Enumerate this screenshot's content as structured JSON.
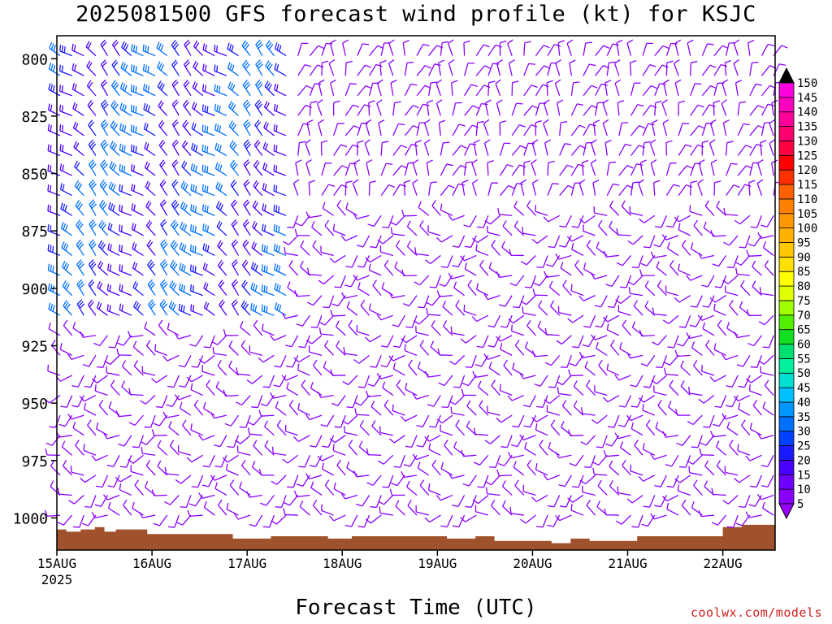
{
  "header": {
    "title": "2025081500 GFS forecast wind profile (kt) for KSJC"
  },
  "footer": {
    "credit": "coolwx.com/models"
  },
  "chart_data": {
    "type": "wind_barb_profile",
    "title": "2025081500 GFS forecast wind profile (kt) for KSJC",
    "xlabel": "Forecast Time (UTC)",
    "ylabel": "",
    "y_axis": {
      "ticks": [
        800,
        825,
        850,
        875,
        900,
        925,
        950,
        975,
        1000
      ],
      "range": [
        790,
        1014
      ],
      "inverted": true
    },
    "x_axis": {
      "ticks": [
        "15AUG",
        "16AUG",
        "17AUG",
        "18AUG",
        "19AUG",
        "20AUG",
        "21AUG",
        "22AUG"
      ],
      "start_sublabel": "2025",
      "range_days": [
        0,
        7.55
      ]
    },
    "surface_pressure": [
      {
        "d": 0.0,
        "p": 1005
      },
      {
        "d": 0.1,
        "p": 1006
      },
      {
        "d": 0.25,
        "p": 1005
      },
      {
        "d": 0.4,
        "p": 1004
      },
      {
        "d": 0.5,
        "p": 1006
      },
      {
        "d": 0.62,
        "p": 1005
      },
      {
        "d": 0.8,
        "p": 1005
      },
      {
        "d": 0.95,
        "p": 1007
      },
      {
        "d": 1.2,
        "p": 1007
      },
      {
        "d": 1.55,
        "p": 1007
      },
      {
        "d": 1.85,
        "p": 1009
      },
      {
        "d": 2.25,
        "p": 1008
      },
      {
        "d": 2.7,
        "p": 1008
      },
      {
        "d": 2.85,
        "p": 1009
      },
      {
        "d": 3.1,
        "p": 1008
      },
      {
        "d": 3.5,
        "p": 1008
      },
      {
        "d": 3.9,
        "p": 1008
      },
      {
        "d": 4.1,
        "p": 1009
      },
      {
        "d": 4.4,
        "p": 1008
      },
      {
        "d": 4.6,
        "p": 1010
      },
      {
        "d": 5.0,
        "p": 1010
      },
      {
        "d": 5.2,
        "p": 1011
      },
      {
        "d": 5.4,
        "p": 1009
      },
      {
        "d": 5.6,
        "p": 1010
      },
      {
        "d": 6.1,
        "p": 1008
      },
      {
        "d": 6.6,
        "p": 1008
      },
      {
        "d": 6.8,
        "p": 1008
      },
      {
        "d": 7.0,
        "p": 1004
      },
      {
        "d": 7.2,
        "p": 1003
      },
      {
        "d": 7.55,
        "p": 1003
      }
    ],
    "colorbar": {
      "unit": "kt",
      "levels": [
        5,
        10,
        15,
        20,
        25,
        30,
        35,
        40,
        45,
        50,
        55,
        60,
        65,
        70,
        75,
        80,
        85,
        90,
        95,
        100,
        105,
        110,
        115,
        120,
        125,
        130,
        135,
        140,
        145,
        150
      ],
      "colors": [
        "#8a00ff",
        "#7000ff",
        "#4a00ff",
        "#1a1aff",
        "#0040ff",
        "#0070ff",
        "#0098ff",
        "#00bfff",
        "#00dfd0",
        "#00f0a0",
        "#00e070",
        "#10e020",
        "#50f000",
        "#a0ff00",
        "#e0ff00",
        "#ffff00",
        "#ffe000",
        "#ffc800",
        "#ffb000",
        "#ff9800",
        "#ff8000",
        "#ff6000",
        "#ff3000",
        "#ff0000",
        "#ff0040",
        "#ff0070",
        "#ff0098",
        "#ff00c0",
        "#ff00e0",
        "#000000"
      ]
    },
    "grid": false,
    "legend": "right"
  }
}
